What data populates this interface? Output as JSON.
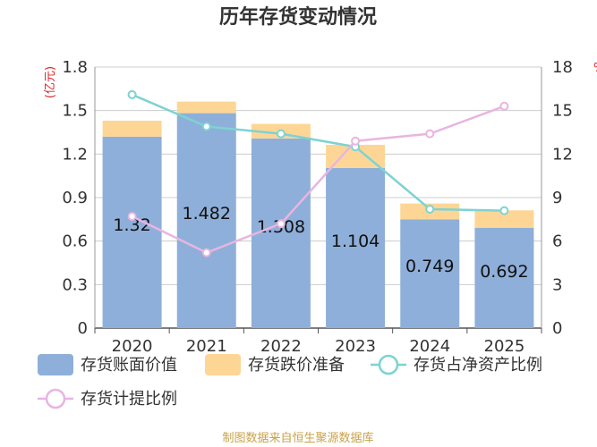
{
  "chart_data": {
    "type": "bar",
    "title": "历年存货变动情况",
    "categories": [
      "2020",
      "2021",
      "2022",
      "2023",
      "2024",
      "2025"
    ],
    "left_axis": {
      "unit": "(亿元)",
      "ylim": [
        0,
        1.8
      ],
      "ticks": [
        "0",
        "0.3",
        "0.6",
        "0.9",
        "1.2",
        "1.5",
        "1.8"
      ]
    },
    "right_axis": {
      "unit": "%",
      "ylim": [
        0,
        18
      ],
      "ticks": [
        "0",
        "3",
        "6",
        "9",
        "12",
        "15",
        "18"
      ]
    },
    "series": [
      {
        "name": "存货账面价值",
        "kind": "bar",
        "stack": "inv",
        "color": "#8eafd9",
        "values": [
          1.32,
          1.482,
          1.308,
          1.104,
          0.749,
          0.692
        ],
        "data_labels": [
          "1.32",
          "1.482",
          "1.308",
          "1.104",
          "0.749",
          "0.692"
        ]
      },
      {
        "name": "存货跌价准备",
        "kind": "bar",
        "stack": "inv",
        "color": "#fdd696",
        "values": [
          0.11,
          0.08,
          0.1,
          0.16,
          0.11,
          0.12
        ]
      },
      {
        "name": "存货占净资产比例",
        "kind": "line",
        "axis": "right",
        "color": "#7dd3d3",
        "values": [
          16.1,
          13.9,
          13.4,
          12.5,
          8.2,
          8.1
        ]
      },
      {
        "name": "存货计提比例",
        "kind": "line",
        "axis": "right",
        "color": "#e8b5e0",
        "values": [
          7.7,
          5.2,
          7.2,
          12.9,
          13.4,
          15.3
        ]
      }
    ],
    "legend_position": "bottom",
    "grid": true,
    "source": "制图数据来自恒生聚源数据库"
  }
}
